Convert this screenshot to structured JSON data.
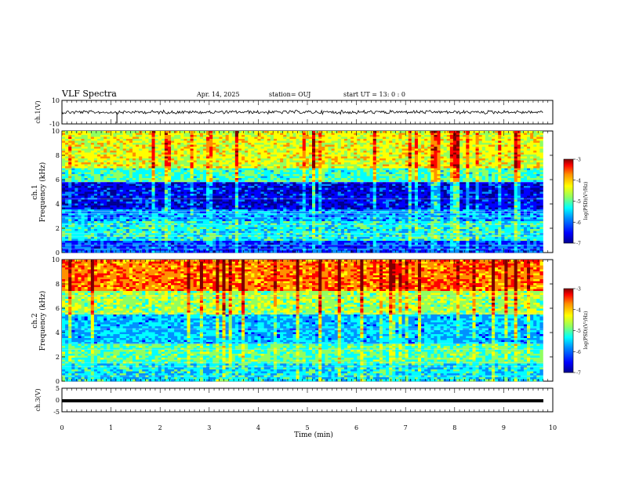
{
  "header": {
    "title": "VLF Spectra",
    "date": "Apr. 14, 2025",
    "station": "station= OUJ",
    "start": "start  UT =   13: 0  : 0"
  },
  "colors": {
    "colormap": [
      "#000090",
      "#0000ff",
      "#0090ff",
      "#00ffff",
      "#90ff60",
      "#ffff00",
      "#ff9000",
      "#ff0000",
      "#800000"
    ]
  },
  "chart_data": [
    {
      "type": "line",
      "panel": "ch1-waveform",
      "ylabel": "ch.1(V)",
      "ylim": [
        -10,
        10
      ],
      "yticks": [
        "10",
        "-10"
      ],
      "xlim": [
        0,
        10
      ],
      "series": [
        {
          "x": [
            0,
            9.8
          ],
          "y": [
            0,
            0
          ]
        }
      ]
    },
    {
      "type": "heatmap",
      "panel": "ch1-spectrogram",
      "ylabel_top": "ch.1",
      "ylabel": "Frequency (kHz)",
      "ylim": [
        0,
        10
      ],
      "yticks": [
        "0",
        "2",
        "4",
        "6",
        "8",
        "10"
      ],
      "xlim": [
        0,
        10
      ],
      "colorbar": {
        "label": "log(PSD)(V²/Hz)",
        "range": [
          -7,
          -3
        ],
        "ticks": [
          "-3",
          "-4",
          "-5",
          "-6",
          "-7"
        ]
      },
      "bands": [
        {
          "fmin": 0,
          "fmax": 1.0,
          "level": -6.3
        },
        {
          "fmin": 1.0,
          "fmax": 2.6,
          "level": -5.5
        },
        {
          "fmin": 2.6,
          "fmax": 3.6,
          "level": -5.9
        },
        {
          "fmin": 3.6,
          "fmax": 5.8,
          "level": -6.6
        },
        {
          "fmin": 5.8,
          "fmax": 7.0,
          "level": -5.3
        },
        {
          "fmin": 7.0,
          "fmax": 10.0,
          "level": -4.6
        }
      ]
    },
    {
      "type": "heatmap",
      "panel": "ch2-spectrogram",
      "ylabel_top": "ch.2",
      "ylabel": "Frequency (kHz)",
      "ylim": [
        0,
        10
      ],
      "yticks": [
        "0",
        "2",
        "4",
        "6",
        "8",
        "10"
      ],
      "xlim": [
        0,
        10
      ],
      "colorbar": {
        "label": "log(PSD)(V²/Hz)",
        "range": [
          -7,
          -3
        ],
        "ticks": [
          "-3",
          "-4",
          "-5",
          "-6",
          "-7"
        ]
      },
      "bands": [
        {
          "fmin": 0,
          "fmax": 1.5,
          "level": -5.6
        },
        {
          "fmin": 1.5,
          "fmax": 3.0,
          "level": -5.2
        },
        {
          "fmin": 3.0,
          "fmax": 5.5,
          "level": -5.8
        },
        {
          "fmin": 5.5,
          "fmax": 7.5,
          "level": -4.9
        },
        {
          "fmin": 7.5,
          "fmax": 10.0,
          "level": -3.9
        }
      ]
    },
    {
      "type": "line",
      "panel": "ch3-waveform",
      "ylabel": "ch.3(V)",
      "ylim": [
        -5,
        5
      ],
      "yticks": [
        "5",
        "0",
        "-5"
      ],
      "xlim": [
        0,
        10
      ],
      "series": [
        {
          "x": [
            0,
            9.8
          ],
          "y": [
            -0.3,
            -0.3
          ]
        }
      ]
    }
  ],
  "xaxis": {
    "label": "Time (min)",
    "ticks": [
      "0",
      "1",
      "2",
      "3",
      "4",
      "5",
      "6",
      "7",
      "8",
      "9",
      "10"
    ]
  }
}
